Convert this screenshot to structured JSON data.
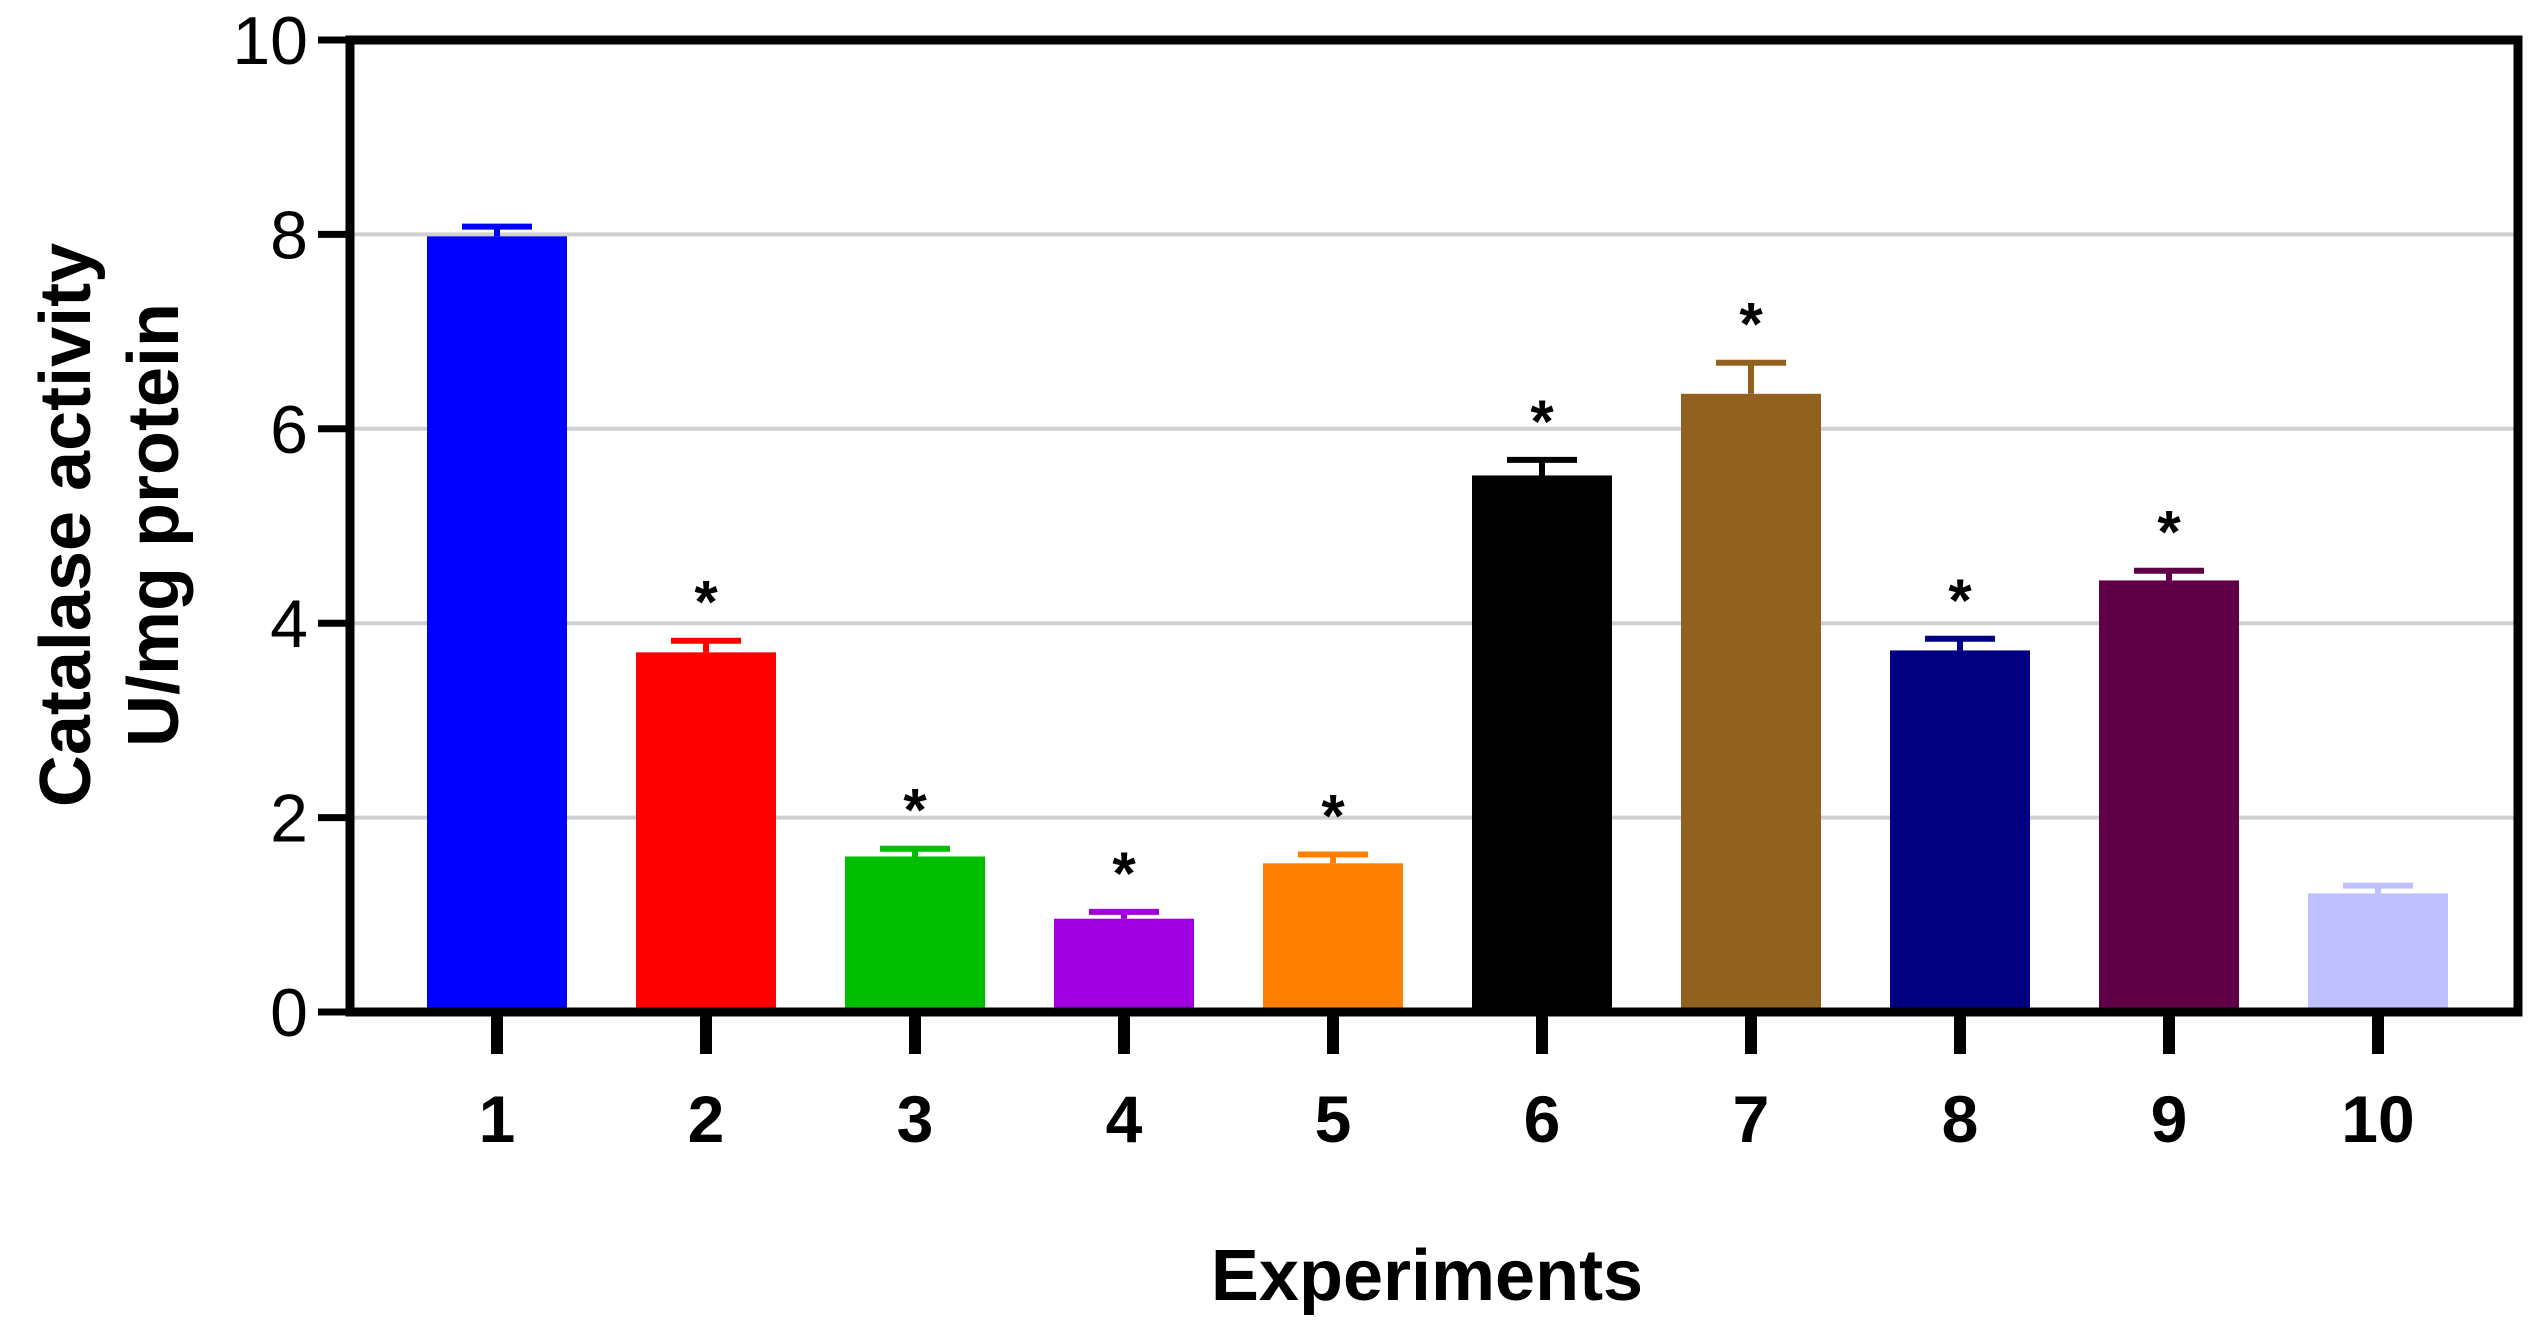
{
  "chart_data": {
    "type": "bar",
    "title": "",
    "xlabel": "Experiments",
    "ylabel_lines": [
      "Catalase activity",
      "U/mg protein"
    ],
    "ylim": [
      0,
      10
    ],
    "yticks": [
      0,
      2,
      4,
      6,
      8,
      10
    ],
    "grid": true,
    "categories": [
      "1",
      "2",
      "3",
      "4",
      "5",
      "6",
      "7",
      "8",
      "9",
      "10"
    ],
    "values": [
      7.98,
      3.7,
      1.6,
      0.96,
      1.53,
      5.52,
      6.36,
      3.72,
      4.44,
      1.22
    ],
    "errors": [
      0.1,
      0.12,
      0.08,
      0.07,
      0.09,
      0.16,
      0.32,
      0.12,
      0.1,
      0.08
    ],
    "significance": [
      "",
      "*",
      "*",
      "*",
      "*",
      "*",
      "*",
      "*",
      "*",
      ""
    ],
    "colors": [
      "#0000ff",
      "#ff0000",
      "#00bf00",
      "#a000e0",
      "#ff8000",
      "#000000",
      "#926120",
      "#000080",
      "#600048",
      "#c0c0ff"
    ],
    "grid_color": "#d0d0d0"
  }
}
